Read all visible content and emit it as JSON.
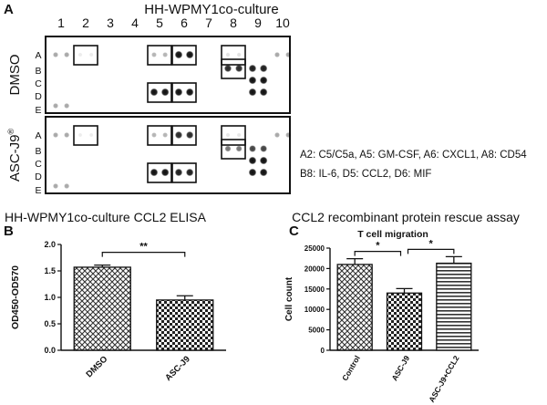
{
  "panel_a": {
    "label": "A",
    "title": "HH-WPMY1co-culture",
    "columns": [
      "1",
      "2",
      "3",
      "4",
      "5",
      "6",
      "7",
      "8",
      "9",
      "10"
    ],
    "rows": [
      "A",
      "B",
      "C",
      "D",
      "E"
    ],
    "blot_dmso": {
      "condition": "DMSO",
      "spots": [
        {
          "row": "A",
          "col": 1,
          "i": 0.35
        },
        {
          "row": "A",
          "col": 1.45,
          "i": 0.35
        },
        {
          "row": "A",
          "col": 2,
          "i": 0.08
        },
        {
          "row": "A",
          "col": 2.45,
          "i": 0.08
        },
        {
          "row": "A",
          "col": 5,
          "i": 0.3
        },
        {
          "row": "A",
          "col": 5.45,
          "i": 0.3
        },
        {
          "row": "A",
          "col": 6,
          "i": 0.95
        },
        {
          "row": "A",
          "col": 6.45,
          "i": 0.95
        },
        {
          "row": "A",
          "col": 8,
          "i": 0.12
        },
        {
          "row": "A",
          "col": 8.45,
          "i": 0.12
        },
        {
          "row": "A",
          "col": 10,
          "i": 0.35
        },
        {
          "row": "A",
          "col": 10.45,
          "i": 0.35
        },
        {
          "row": "B",
          "col": 8,
          "i": 0.85
        },
        {
          "row": "B",
          "col": 8.45,
          "i": 0.85
        },
        {
          "row": "B",
          "col": 9,
          "i": 0.9
        },
        {
          "row": "B",
          "col": 9.45,
          "i": 0.9
        },
        {
          "row": "C",
          "col": 9,
          "i": 0.95
        },
        {
          "row": "C",
          "col": 9.45,
          "i": 0.95
        },
        {
          "row": "D",
          "col": 5,
          "i": 0.95
        },
        {
          "row": "D",
          "col": 5.45,
          "i": 0.95
        },
        {
          "row": "D",
          "col": 6,
          "i": 0.95
        },
        {
          "row": "D",
          "col": 6.45,
          "i": 0.95
        },
        {
          "row": "D",
          "col": 9,
          "i": 0.95
        },
        {
          "row": "D",
          "col": 9.45,
          "i": 0.95
        },
        {
          "row": "E",
          "col": 1,
          "i": 0.35
        },
        {
          "row": "E",
          "col": 1.45,
          "i": 0.35
        }
      ],
      "boxes": [
        {
          "row": "A",
          "col": 2
        },
        {
          "row": "A",
          "col": 5
        },
        {
          "row": "A",
          "col": 6
        },
        {
          "row": "A",
          "col": 8
        },
        {
          "row": "B",
          "col": 8
        },
        {
          "row": "D",
          "col": 5
        },
        {
          "row": "D",
          "col": 6
        }
      ]
    },
    "blot_ascj9": {
      "condition": "ASC-J9",
      "condition_sup": "®",
      "spots": [
        {
          "row": "A",
          "col": 1,
          "i": 0.35
        },
        {
          "row": "A",
          "col": 1.45,
          "i": 0.35
        },
        {
          "row": "A",
          "col": 2,
          "i": 0.05
        },
        {
          "row": "A",
          "col": 2.45,
          "i": 0.05
        },
        {
          "row": "A",
          "col": 5,
          "i": 0.3
        },
        {
          "row": "A",
          "col": 5.45,
          "i": 0.3
        },
        {
          "row": "A",
          "col": 6,
          "i": 0.85
        },
        {
          "row": "A",
          "col": 6.45,
          "i": 0.85
        },
        {
          "row": "A",
          "col": 8,
          "i": 0.1
        },
        {
          "row": "A",
          "col": 8.45,
          "i": 0.1
        },
        {
          "row": "A",
          "col": 10,
          "i": 0.35
        },
        {
          "row": "A",
          "col": 10.45,
          "i": 0.35
        },
        {
          "row": "B",
          "col": 8,
          "i": 0.55
        },
        {
          "row": "B",
          "col": 8.45,
          "i": 0.55
        },
        {
          "row": "B",
          "col": 9,
          "i": 0.75
        },
        {
          "row": "B",
          "col": 9.45,
          "i": 0.75
        },
        {
          "row": "C",
          "col": 9,
          "i": 0.95
        },
        {
          "row": "C",
          "col": 9.45,
          "i": 0.95
        },
        {
          "row": "D",
          "col": 5,
          "i": 0.95
        },
        {
          "row": "D",
          "col": 5.45,
          "i": 0.95
        },
        {
          "row": "D",
          "col": 6,
          "i": 0.9
        },
        {
          "row": "D",
          "col": 6.45,
          "i": 0.9
        },
        {
          "row": "D",
          "col": 9,
          "i": 0.95
        },
        {
          "row": "D",
          "col": 9.45,
          "i": 0.95
        },
        {
          "row": "E",
          "col": 1,
          "i": 0.35
        },
        {
          "row": "E",
          "col": 1.45,
          "i": 0.35
        }
      ],
      "boxes": [
        {
          "row": "A",
          "col": 2
        },
        {
          "row": "A",
          "col": 5
        },
        {
          "row": "A",
          "col": 6
        },
        {
          "row": "A",
          "col": 8
        },
        {
          "row": "B",
          "col": 8
        },
        {
          "row": "D",
          "col": 5
        },
        {
          "row": "D",
          "col": 6
        }
      ]
    },
    "legend_lines": [
      "A2: C5/C5a, A5: GM-CSF, A6: CXCL1, A8: CD54",
      "B8: IL-6, D5: CCL2, D6: MIF"
    ]
  },
  "chart_data": [
    {
      "type": "bar",
      "panel": "B",
      "title": "HH-WPMY1co-culture CCL2 ELISA",
      "categories": [
        "DMSO",
        "ASC-J9"
      ],
      "values": [
        1.57,
        0.95
      ],
      "errors": [
        0.04,
        0.08
      ],
      "ylabel": "OD450-OD570",
      "xlabel": "",
      "ylim": [
        0,
        2.0
      ],
      "yticks": [
        "0.0",
        "0.5",
        "1.0",
        "1.5",
        "2.0"
      ],
      "significance": [
        {
          "from": "DMSO",
          "to": "ASC-J9",
          "label": "**"
        }
      ]
    },
    {
      "type": "bar",
      "panel": "C",
      "title": "CCL2 recombinant protein rescue assay",
      "subtitle": "T cell migration",
      "categories": [
        "Control",
        "ASC-J9",
        "ASC-J9+CCL2"
      ],
      "values": [
        21000,
        14000,
        21300
      ],
      "errors": [
        1400,
        1100,
        1600
      ],
      "ylabel": "Cell count",
      "xlabel": "",
      "ylim": [
        0,
        25000
      ],
      "yticks": [
        "0",
        "5000",
        "10000",
        "15000",
        "20000",
        "25000"
      ],
      "significance": [
        {
          "from": "Control",
          "to": "ASC-J9",
          "label": "*"
        },
        {
          "from": "ASC-J9",
          "to": "ASC-J9+CCL2",
          "label": "*"
        }
      ]
    }
  ]
}
